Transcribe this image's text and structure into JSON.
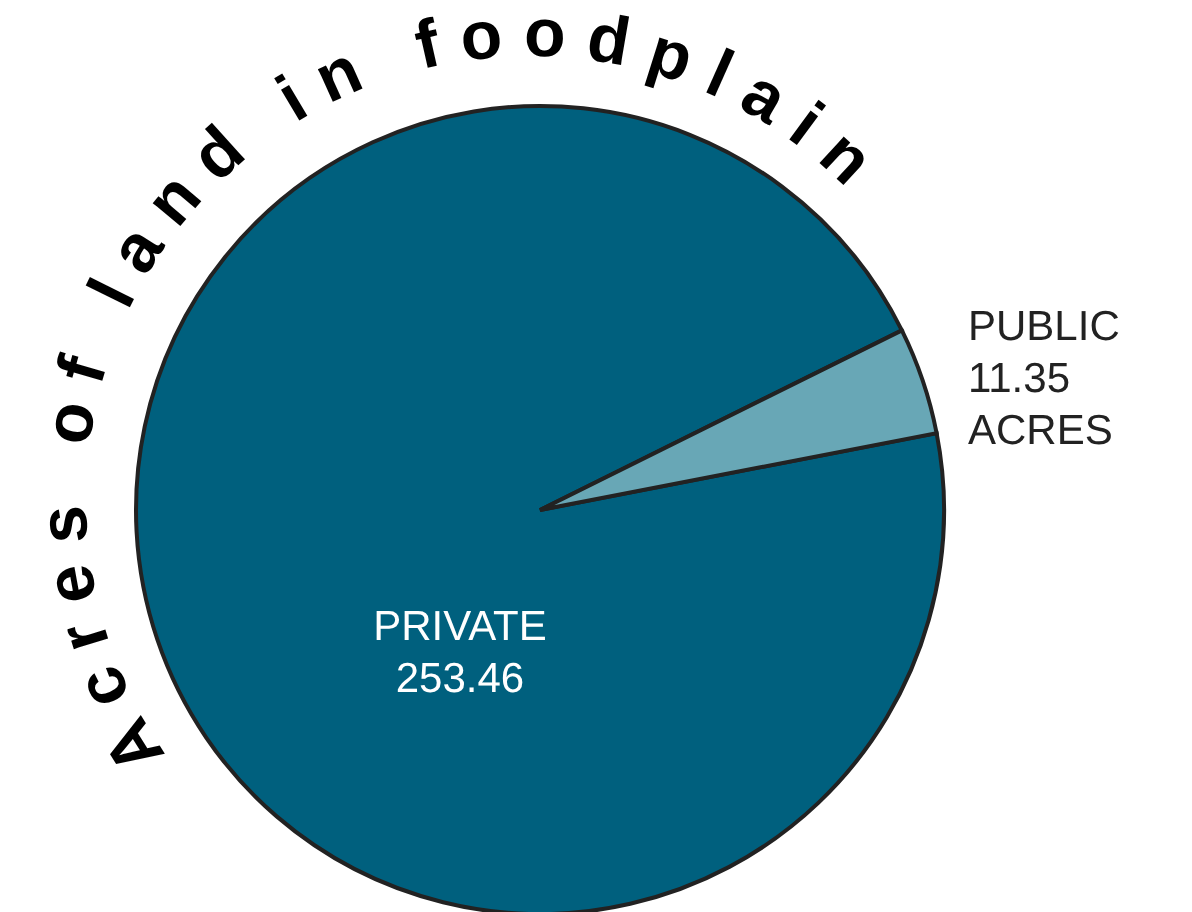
{
  "chart_data": {
    "type": "pie",
    "title": "Acres of land in foodplain",
    "categories": [
      "PRIVATE",
      "PUBLIC"
    ],
    "values": [
      253.46,
      11.35
    ],
    "colors": [
      "#00607e",
      "#68a7b6"
    ],
    "value_labels": [
      "253.46",
      "11.35 ACRES"
    ]
  }
}
